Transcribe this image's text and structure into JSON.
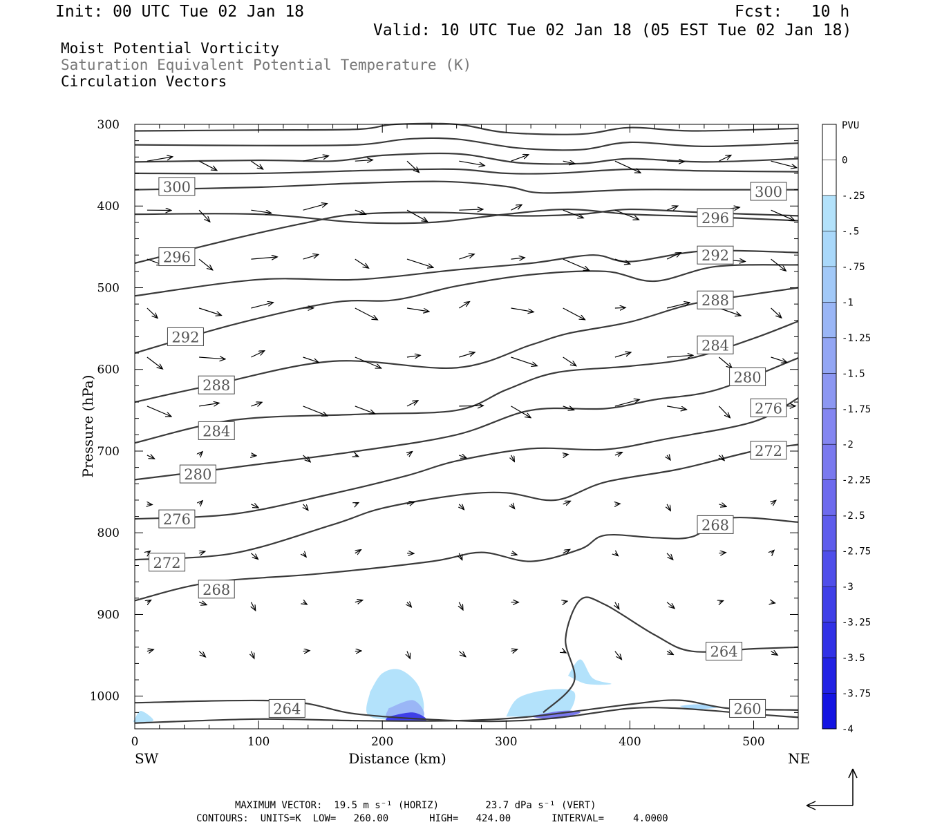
{
  "header": {
    "init": "Init: 00 UTC Tue 02 Jan 18",
    "fcst": "Fcst:   10 h",
    "valid": "Valid: 10 UTC Tue 02 Jan 18 (05 EST Tue 02 Jan 18)"
  },
  "fields": {
    "field1": "Moist Potential Vorticity",
    "field2": "Saturation Equivalent Potential Temperature (K)",
    "field3": "Circulation Vectors"
  },
  "footer": {
    "line1": "MAXIMUM VECTOR:  19.5 m s⁻¹ (HORIZ)        23.7 dPa s⁻¹ (VERT)",
    "line2": "CONTOURS:  UNITS=K  LOW=   260.00       HIGH=   424.00       INTERVAL=     4.0000"
  },
  "colors": {
    "contour": "#3a3a3a",
    "pv_shades": [
      "#ffffff",
      "#ffffff",
      "#b3e2fb",
      "#a9d8fa",
      "#a2c9f8",
      "#9ab6f6",
      "#93a6f4",
      "#8c97f2",
      "#8486f1",
      "#7a79ef",
      "#6d6aee",
      "#5e5cec",
      "#4f4eea",
      "#3f3fe8",
      "#3131e6",
      "#2222e4",
      "#1414e2"
    ]
  },
  "chart_data": {
    "type": "cross-section",
    "xlabel": "Distance (km)",
    "ylabel": "Pressure (hPa)",
    "x_ticks": [
      0,
      100,
      200,
      300,
      400,
      500
    ],
    "y_ticks": [
      300,
      400,
      500,
      600,
      700,
      800,
      900,
      1000
    ],
    "xlim": [
      0,
      536
    ],
    "ylim": [
      300,
      1040
    ],
    "endpoints": {
      "left": "SW",
      "right": "NE"
    },
    "colorbar": {
      "units": "PVU",
      "labels": [
        "0",
        "-.25",
        "-.5",
        "-.75",
        "-1",
        "-1.25",
        "-1.5",
        "-1.75",
        "-2",
        "-2.25",
        "-2.5",
        "-2.75",
        "-3",
        "-3.25",
        "-3.5",
        "-3.75",
        "-4"
      ]
    },
    "theta_e_contours": [
      {
        "level": 300,
        "points": [
          [
            0,
            308
          ],
          [
            100,
            307
          ],
          [
            180,
            306
          ],
          [
            210,
            300
          ],
          [
            260,
            300
          ],
          [
            300,
            310
          ],
          [
            360,
            312
          ],
          [
            400,
            304
          ],
          [
            450,
            308
          ],
          [
            536,
            305
          ]
        ]
      },
      {
        "level": 300,
        "points": [
          [
            0,
            325
          ],
          [
            100,
            326
          ],
          [
            180,
            325
          ],
          [
            220,
            318
          ],
          [
            260,
            318
          ],
          [
            310,
            329
          ],
          [
            360,
            331
          ],
          [
            400,
            322
          ],
          [
            460,
            327
          ],
          [
            536,
            323
          ]
        ]
      },
      {
        "level": 300,
        "points": [
          [
            0,
            346
          ],
          [
            100,
            344
          ],
          [
            160,
            345
          ],
          [
            200,
            338
          ],
          [
            260,
            336
          ],
          [
            310,
            347
          ],
          [
            360,
            348
          ],
          [
            400,
            342
          ],
          [
            460,
            346
          ],
          [
            536,
            342
          ]
        ]
      },
      {
        "level": 300,
        "points": [
          [
            0,
            360
          ],
          [
            100,
            360
          ],
          [
            200,
            356
          ],
          [
            260,
            355
          ],
          [
            300,
            360
          ],
          [
            340,
            360
          ],
          [
            400,
            355
          ],
          [
            460,
            357
          ],
          [
            536,
            358
          ]
        ]
      },
      {
        "level": 300,
        "points": [
          [
            0,
            380
          ],
          [
            100,
            377
          ],
          [
            180,
            372
          ],
          [
            250,
            370
          ],
          [
            300,
            376
          ],
          [
            330,
            384
          ],
          [
            400,
            380
          ],
          [
            460,
            380
          ],
          [
            536,
            380
          ]
        ]
      },
      {
        "level": 296,
        "points": [
          [
            0,
            410
          ],
          [
            100,
            410
          ],
          [
            180,
            420
          ],
          [
            240,
            420
          ],
          [
            300,
            410
          ],
          [
            350,
            404
          ],
          [
            400,
            410
          ],
          [
            460,
            413
          ],
          [
            536,
            418
          ]
        ]
      },
      {
        "level": 292,
        "points": [
          [
            0,
            470
          ],
          [
            80,
            440
          ],
          [
            140,
            420
          ],
          [
            180,
            410
          ],
          [
            250,
            408
          ],
          [
            310,
            412
          ],
          [
            360,
            410
          ],
          [
            400,
            404
          ],
          [
            460,
            408
          ],
          [
            536,
            412
          ]
        ]
      },
      {
        "level": 288,
        "points": [
          [
            0,
            510
          ],
          [
            100,
            490
          ],
          [
            180,
            490
          ],
          [
            260,
            478
          ],
          [
            320,
            470
          ],
          [
            370,
            460
          ],
          [
            400,
            468
          ],
          [
            460,
            455
          ],
          [
            536,
            457
          ]
        ]
      },
      {
        "level": 284,
        "points": [
          [
            0,
            580
          ],
          [
            80,
            545
          ],
          [
            160,
            518
          ],
          [
            210,
            515
          ],
          [
            260,
            498
          ],
          [
            320,
            484
          ],
          [
            380,
            480
          ],
          [
            420,
            492
          ],
          [
            470,
            474
          ],
          [
            536,
            472
          ]
        ]
      },
      {
        "level": 280,
        "points": [
          [
            0,
            640
          ],
          [
            60,
            620
          ],
          [
            160,
            590
          ],
          [
            260,
            598
          ],
          [
            320,
            570
          ],
          [
            350,
            556
          ],
          [
            400,
            542
          ],
          [
            450,
            520
          ],
          [
            500,
            508
          ],
          [
            536,
            500
          ]
        ]
      },
      {
        "level": 276,
        "points": [
          [
            0,
            690
          ],
          [
            80,
            662
          ],
          [
            180,
            655
          ],
          [
            260,
            650
          ],
          [
            300,
            625
          ],
          [
            340,
            604
          ],
          [
            400,
            596
          ],
          [
            450,
            586
          ],
          [
            500,
            562
          ],
          [
            536,
            541
          ]
        ]
      },
      {
        "level": 272,
        "points": [
          [
            0,
            735
          ],
          [
            80,
            720
          ],
          [
            180,
            700
          ],
          [
            260,
            680
          ],
          [
            320,
            650
          ],
          [
            380,
            648
          ],
          [
            420,
            637
          ],
          [
            470,
            625
          ],
          [
            536,
            586
          ]
        ]
      },
      {
        "level": 268,
        "points": [
          [
            0,
            783
          ],
          [
            80,
            777
          ],
          [
            160,
            752
          ],
          [
            220,
            730
          ],
          [
            260,
            712
          ],
          [
            320,
            697
          ],
          [
            380,
            698
          ],
          [
            430,
            685
          ],
          [
            500,
            664
          ],
          [
            536,
            635
          ]
        ]
      },
      {
        "level": 264,
        "points": [
          [
            0,
            833
          ],
          [
            80,
            825
          ],
          [
            160,
            790
          ],
          [
            200,
            770
          ],
          [
            260,
            754
          ],
          [
            300,
            751
          ],
          [
            340,
            760
          ],
          [
            380,
            738
          ],
          [
            440,
            722
          ],
          [
            500,
            700
          ],
          [
            536,
            692
          ]
        ]
      },
      {
        "level": 260,
        "points": [
          [
            0,
            883
          ],
          [
            60,
            861
          ],
          [
            150,
            850
          ],
          [
            240,
            835
          ],
          [
            280,
            824
          ],
          [
            320,
            835
          ],
          [
            360,
            820
          ],
          [
            380,
            803
          ],
          [
            420,
            806
          ],
          [
            450,
            805
          ],
          [
            480,
            782
          ],
          [
            536,
            787
          ]
        ]
      },
      {
        "level": 260,
        "points": [
          [
            0,
            1008
          ],
          [
            120,
            1006
          ],
          [
            180,
            1022
          ],
          [
            260,
            1030
          ],
          [
            310,
            1030
          ],
          [
            350,
            1025
          ],
          [
            400,
            1015
          ],
          [
            440,
            1015
          ],
          [
            500,
            1022
          ],
          [
            536,
            1026
          ]
        ]
      },
      {
        "level": 260,
        "points": [
          [
            0,
            1033
          ],
          [
            100,
            1028
          ],
          [
            180,
            1030
          ],
          [
            260,
            1030
          ],
          [
            320,
            1025
          ],
          [
            400,
            1010
          ],
          [
            440,
            1005
          ],
          [
            480,
            1015
          ],
          [
            536,
            1017
          ]
        ]
      }
    ],
    "inline_labels": [
      {
        "text": "300",
        "x": 34,
        "p": 376
      },
      {
        "text": "300",
        "x": 512,
        "p": 382
      },
      {
        "text": "296",
        "x": 469,
        "p": 414
      },
      {
        "text": "296",
        "x": 34,
        "p": 462
      },
      {
        "text": "292",
        "x": 469,
        "p": 460
      },
      {
        "text": "292",
        "x": 41,
        "p": 560
      },
      {
        "text": "288",
        "x": 469,
        "p": 515
      },
      {
        "text": "288",
        "x": 66,
        "p": 619
      },
      {
        "text": "284",
        "x": 469,
        "p": 570
      },
      {
        "text": "284",
        "x": 66,
        "p": 675
      },
      {
        "text": "280",
        "x": 495,
        "p": 609
      },
      {
        "text": "280",
        "x": 51,
        "p": 728
      },
      {
        "text": "276",
        "x": 512,
        "p": 647
      },
      {
        "text": "276",
        "x": 34,
        "p": 783
      },
      {
        "text": "272",
        "x": 512,
        "p": 699
      },
      {
        "text": "272",
        "x": 26,
        "p": 836
      },
      {
        "text": "268",
        "x": 469,
        "p": 790
      },
      {
        "text": "268",
        "x": 66,
        "p": 869
      },
      {
        "text": "264",
        "x": 476,
        "p": 945
      },
      {
        "text": "264",
        "x": 123,
        "p": 1015
      },
      {
        "text": "260",
        "x": 495,
        "p": 1015
      }
    ],
    "pv_regions": [
      {
        "level": -0.25,
        "points": [
          [
            190,
            995
          ],
          [
            200,
            972
          ],
          [
            215,
            968
          ],
          [
            230,
            990
          ],
          [
            230,
            1025
          ],
          [
            190,
            1025
          ]
        ]
      },
      {
        "level": -1.0,
        "points": [
          [
            205,
            1015
          ],
          [
            225,
            1005
          ],
          [
            233,
            1025
          ],
          [
            205,
            1027
          ]
        ]
      },
      {
        "level": -3.0,
        "points": [
          [
            205,
            1025
          ],
          [
            225,
            1020
          ],
          [
            235,
            1030
          ],
          [
            205,
            1030
          ]
        ]
      },
      {
        "level": -0.25,
        "points": [
          [
            300,
            1025
          ],
          [
            310,
            1002
          ],
          [
            335,
            992
          ],
          [
            355,
            995
          ],
          [
            350,
            1020
          ],
          [
            330,
            1025
          ]
        ]
      },
      {
        "level": -2.0,
        "points": [
          [
            318,
            1025
          ],
          [
            345,
            1018
          ],
          [
            360,
            1020
          ],
          [
            340,
            1028
          ]
        ]
      },
      {
        "level": -0.25,
        "points": [
          [
            350,
            975
          ],
          [
            360,
            955
          ],
          [
            370,
            978
          ],
          [
            385,
            985
          ],
          [
            365,
            985
          ]
        ]
      },
      {
        "level": -0.25,
        "points": [
          [
            0,
            1028
          ],
          [
            5,
            1018
          ],
          [
            15,
            1030
          ],
          [
            0,
            1032
          ]
        ]
      },
      {
        "level": -0.5,
        "points": [
          [
            440,
            1012
          ],
          [
            455,
            1010
          ],
          [
            470,
            1014
          ],
          [
            450,
            1016
          ]
        ]
      }
    ]
  }
}
